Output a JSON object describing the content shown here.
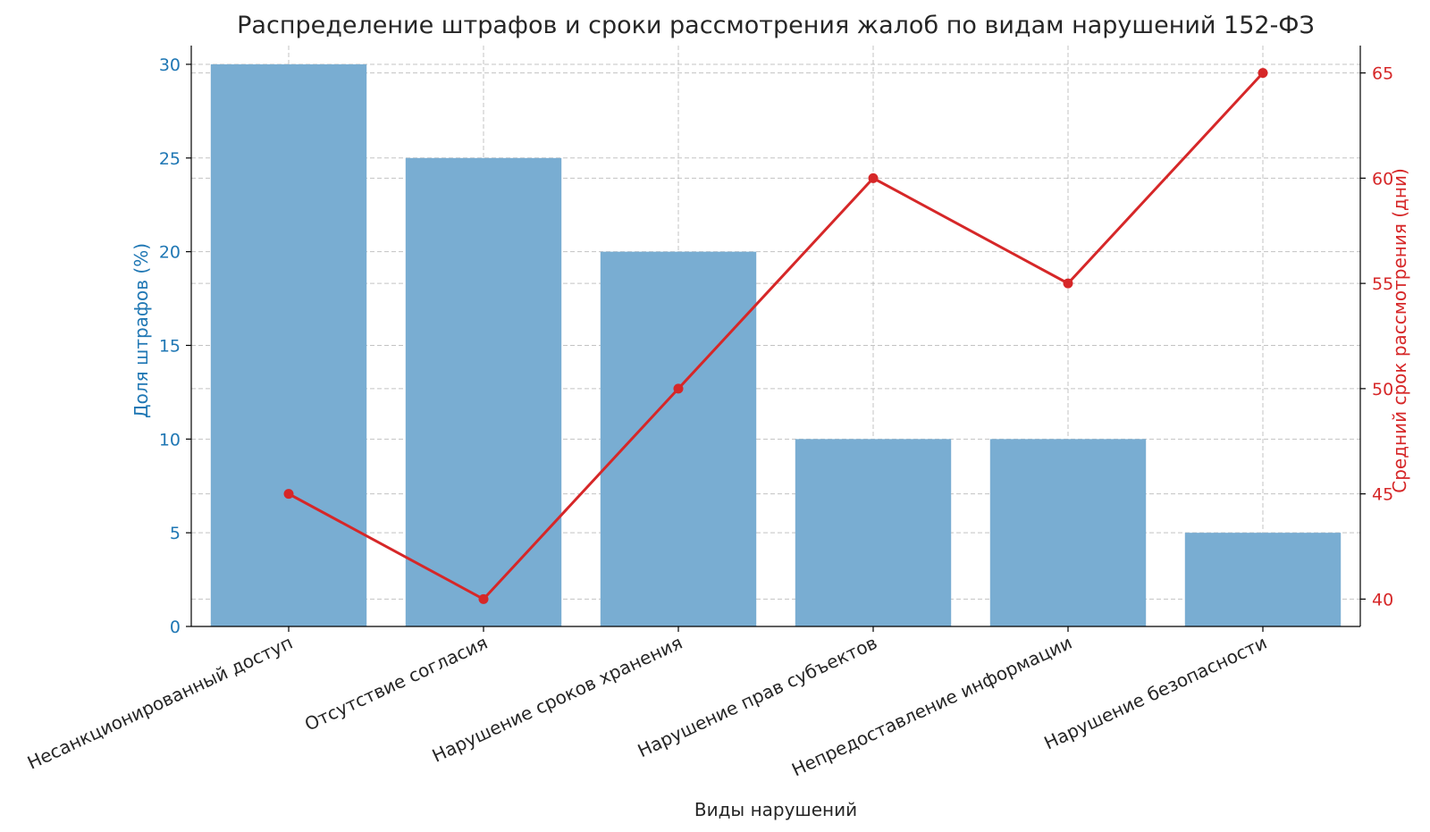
{
  "colors": {
    "bar": "#79add2",
    "line": "#d62728",
    "left_axis": "#1f77b4",
    "right_axis": "#d62728",
    "text": "#262626",
    "grid": "#b0b0b0"
  },
  "chart_data": {
    "type": "bar",
    "title": "Распределение штрафов и сроки рассмотрения жалоб по видам нарушений 152-ФЗ",
    "xlabel": "Виды нарушений",
    "ylabel": "Доля штрафов (%)",
    "y2label": "Средний срок рассмотрения (дни)",
    "categories": [
      "Несанкционированный доступ",
      "Отсутствие согласия",
      "Нарушение сроков хранения",
      "Нарушение прав субъектов",
      "Непредоставление информации",
      "Нарушение безопасности"
    ],
    "series": [
      {
        "type": "bar",
        "axis": "left",
        "values": [
          30,
          25,
          20,
          10,
          10,
          5
        ]
      },
      {
        "type": "line",
        "axis": "right",
        "values": [
          45,
          40,
          50,
          60,
          55,
          65
        ]
      }
    ],
    "ylim": [
      0,
      31
    ],
    "y2lim": [
      38.7,
      66.3
    ],
    "yticks": [
      0,
      5,
      10,
      15,
      20,
      25,
      30
    ],
    "y2ticks": [
      40,
      45,
      50,
      55,
      60,
      65
    ],
    "grid": true,
    "legend": "none"
  }
}
